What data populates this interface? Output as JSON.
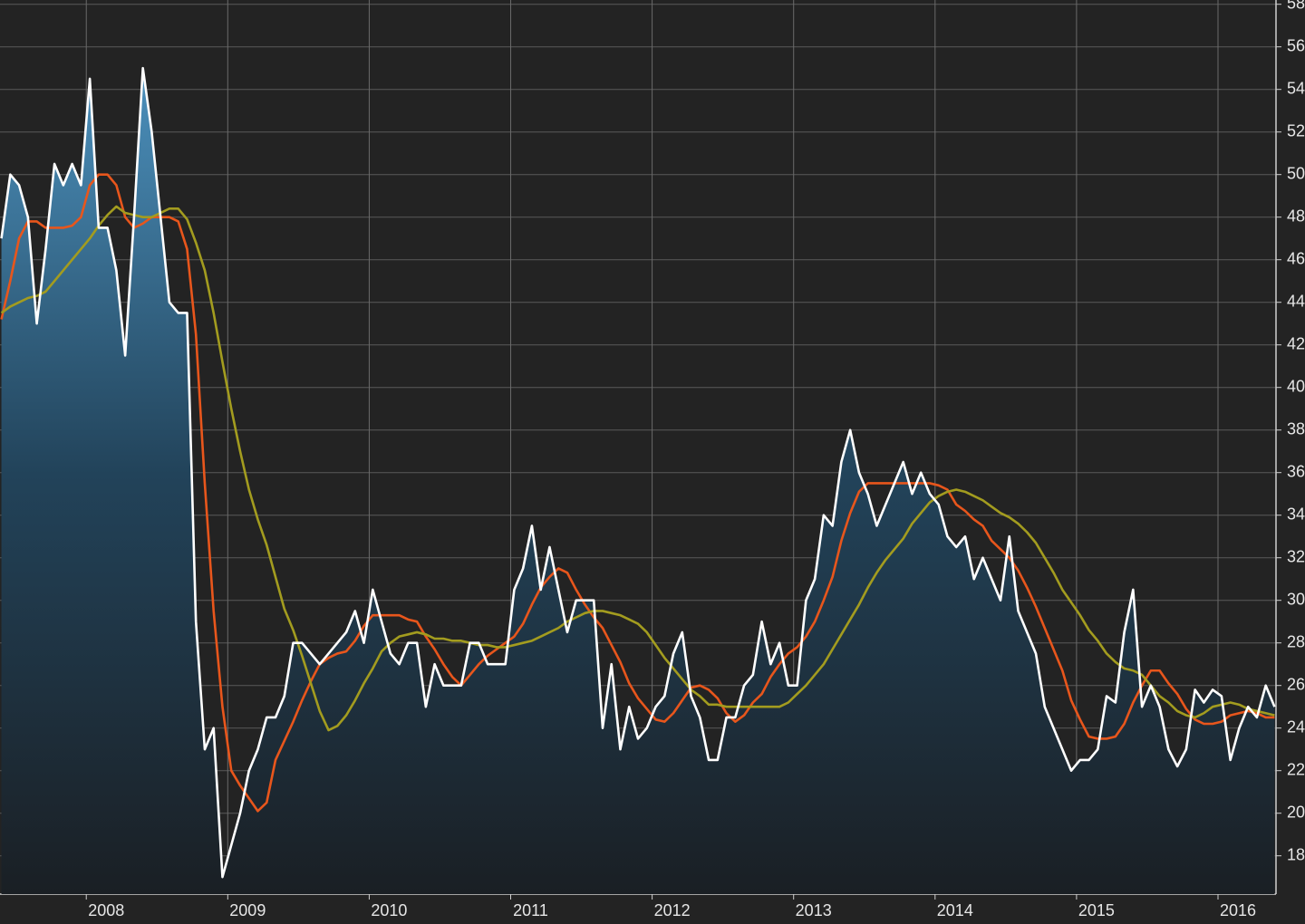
{
  "chart_data": {
    "type": "line",
    "x": [
      2007.4,
      2007.4625,
      2007.525,
      2007.5875,
      2007.65,
      2007.7125,
      2007.775,
      2007.8375,
      2007.9,
      2007.9625,
      2008.025,
      2008.0875,
      2008.15,
      2008.2125,
      2008.275,
      2008.3375,
      2008.4,
      2008.4625,
      2008.525,
      2008.5875,
      2008.65,
      2008.7125,
      2008.775,
      2008.8375,
      2008.9,
      2008.9625,
      2009.025,
      2009.0875,
      2009.15,
      2009.2125,
      2009.275,
      2009.3375,
      2009.4,
      2009.4625,
      2009.525,
      2009.5875,
      2009.65,
      2009.7125,
      2009.775,
      2009.8375,
      2009.9,
      2009.9625,
      2010.025,
      2010.0875,
      2010.15,
      2010.2125,
      2010.275,
      2010.3375,
      2010.4,
      2010.4625,
      2010.525,
      2010.5875,
      2010.65,
      2010.7125,
      2010.775,
      2010.8375,
      2010.9,
      2010.9625,
      2011.025,
      2011.0875,
      2011.15,
      2011.2125,
      2011.275,
      2011.3375,
      2011.4,
      2011.4625,
      2011.525,
      2011.5875,
      2011.65,
      2011.7125,
      2011.775,
      2011.8375,
      2011.9,
      2011.9625,
      2012.025,
      2012.0875,
      2012.15,
      2012.2125,
      2012.275,
      2012.3375,
      2012.4,
      2012.4625,
      2012.525,
      2012.5875,
      2012.65,
      2012.7125,
      2012.775,
      2012.8375,
      2012.9,
      2012.9625,
      2013.025,
      2013.0875,
      2013.15,
      2013.2125,
      2013.275,
      2013.3375,
      2013.4,
      2013.4625,
      2013.525,
      2013.5875,
      2013.65,
      2013.7125,
      2013.775,
      2013.8375,
      2013.9,
      2013.9625,
      2014.025,
      2014.0875,
      2014.15,
      2014.2125,
      2014.275,
      2014.3375,
      2014.4,
      2014.4625,
      2014.525,
      2014.5875,
      2014.65,
      2014.7125,
      2014.775,
      2014.8375,
      2014.9,
      2014.9625,
      2015.025,
      2015.0875,
      2015.15,
      2015.2125,
      2015.275,
      2015.3375,
      2015.4,
      2015.4625,
      2015.525,
      2015.5875,
      2015.65,
      2015.7125,
      2015.775,
      2015.8375,
      2015.9,
      2015.9625,
      2016.025,
      2016.0875,
      2016.15,
      2016.2125,
      2016.275,
      2016.3375,
      2016.4
    ],
    "series": [
      {
        "color": "#ffffff",
        "area": true,
        "values": [
          47,
          50,
          49.5,
          48,
          43,
          46.5,
          50.5,
          49.5,
          50.5,
          49.5,
          54.5,
          47.5,
          47.5,
          45.5,
          41.5,
          48,
          55,
          52,
          48,
          44,
          43.5,
          43.5,
          29,
          23,
          24,
          17,
          18.5,
          20,
          22,
          23,
          24.5,
          24.5,
          25.5,
          28,
          28,
          27.5,
          27,
          27.5,
          28,
          28.5,
          29.5,
          28,
          30.5,
          29,
          27.5,
          27,
          28,
          28,
          25,
          27,
          26,
          26,
          26,
          28,
          28,
          27,
          27,
          27,
          30.5,
          31.5,
          33.5,
          30.5,
          32.5,
          30.5,
          28.5,
          30,
          30,
          30,
          24,
          27,
          23,
          25,
          23.5,
          24,
          25,
          25.5,
          27.5,
          28.5,
          25.5,
          24.5,
          22.5,
          22.5,
          24.5,
          24.5,
          26,
          26.5,
          29,
          27,
          28,
          26,
          26,
          30,
          31,
          34,
          33.5,
          36.5,
          38,
          36,
          35,
          33.5,
          34.5,
          35.5,
          36.5,
          35,
          36,
          35,
          34.5,
          33,
          32.5,
          33,
          31,
          32,
          31,
          30,
          33,
          29.5,
          28.5,
          27.5,
          25,
          24,
          23,
          22,
          22.5,
          22.5,
          23,
          25.5,
          25.2,
          28.5,
          30.5,
          25,
          26,
          25,
          23,
          22.2,
          23,
          25.8,
          25.2,
          25.8,
          25.5,
          22.5,
          24,
          25,
          24.5,
          26,
          25
        ]
      },
      {
        "color": "#e8561c",
        "values": [
          43.2,
          45,
          47,
          47.8,
          47.8,
          47.5,
          47.5,
          47.5,
          47.6,
          48,
          49.5,
          50,
          50,
          49.5,
          48,
          47.5,
          47.7,
          48,
          48,
          48,
          47.8,
          46.5,
          42.5,
          35.5,
          29.5,
          25,
          22,
          21.3,
          20.7,
          20.1,
          20.5,
          22.5,
          23.4,
          24.3,
          25.3,
          26.2,
          27,
          27.3,
          27.5,
          27.6,
          28.1,
          28.8,
          29.3,
          29.3,
          29.3,
          29.3,
          29.1,
          29,
          28.3,
          27.7,
          27,
          26.4,
          26,
          26.5,
          27,
          27.4,
          27.7,
          28,
          28.3,
          28.9,
          29.8,
          30.6,
          31.1,
          31.5,
          31.3,
          30.5,
          29.8,
          29.2,
          28.7,
          27.9,
          27.1,
          26.1,
          25.4,
          24.9,
          24.4,
          24.3,
          24.7,
          25.3,
          25.9,
          26,
          25.8,
          25.4,
          24.7,
          24.3,
          24.6,
          25.2,
          25.6,
          26.4,
          27,
          27.5,
          27.8,
          28.3,
          29,
          30,
          31.1,
          32.8,
          34.1,
          35.1,
          35.5,
          35.5,
          35.5,
          35.5,
          35.5,
          35.5,
          35.5,
          35.5,
          35.4,
          35.2,
          34.5,
          34.2,
          33.8,
          33.5,
          32.8,
          32.4,
          32,
          31.4,
          30.6,
          29.7,
          28.7,
          27.7,
          26.7,
          25.3,
          24.4,
          23.6,
          23.5,
          23.5,
          23.6,
          24.2,
          25.2,
          26,
          26.7,
          26.7,
          26.1,
          25.6,
          24.9,
          24.4,
          24.2,
          24.2,
          24.3,
          24.6,
          24.7,
          24.8,
          24.7,
          24.5,
          24.5
        ]
      },
      {
        "color": "#a39c1f",
        "values": [
          43.5,
          43.8,
          44,
          44.2,
          44.3,
          44.5,
          45,
          45.5,
          46,
          46.5,
          47,
          47.6,
          48.1,
          48.5,
          48.2,
          48.1,
          48,
          48,
          48.2,
          48.4,
          48.4,
          47.9,
          46.8,
          45.5,
          43.5,
          41.2,
          39,
          37,
          35.2,
          33.8,
          32.6,
          31.1,
          29.6,
          28.6,
          27.4,
          26.1,
          24.8,
          23.9,
          24.1,
          24.6,
          25.3,
          26.1,
          26.8,
          27.6,
          28,
          28.3,
          28.4,
          28.5,
          28.4,
          28.2,
          28.2,
          28.1,
          28.1,
          28,
          27.9,
          27.9,
          27.8,
          27.8,
          27.9,
          28,
          28.1,
          28.3,
          28.5,
          28.7,
          29,
          29.2,
          29.4,
          29.5,
          29.5,
          29.4,
          29.3,
          29.1,
          28.9,
          28.5,
          27.9,
          27.3,
          26.8,
          26.3,
          25.8,
          25.5,
          25.1,
          25.1,
          25,
          25,
          25,
          25,
          25,
          25,
          25,
          25.2,
          25.6,
          26,
          26.5,
          27,
          27.7,
          28.4,
          29.1,
          29.8,
          30.6,
          31.3,
          31.9,
          32.4,
          32.9,
          33.6,
          34.1,
          34.6,
          34.9,
          35.1,
          35.2,
          35.1,
          34.9,
          34.7,
          34.4,
          34.1,
          33.9,
          33.6,
          33.2,
          32.7,
          32,
          31.3,
          30.5,
          29.9,
          29.3,
          28.6,
          28.1,
          27.5,
          27.1,
          26.8,
          26.7,
          26.5,
          26,
          25.5,
          25.2,
          24.8,
          24.6,
          24.5,
          24.7,
          25,
          25.1,
          25.2,
          25.1,
          24.9,
          24.8,
          24.7,
          24.6
        ]
      }
    ],
    "xlim": [
      2007.39,
      2016.41
    ],
    "xticks": [
      2008,
      2009,
      2010,
      2011,
      2012,
      2013,
      2014,
      2015,
      2016
    ],
    "ylim": [
      16.2,
      58.2
    ],
    "yticks": [
      18,
      20,
      22,
      24,
      26,
      28,
      30,
      32,
      34,
      36,
      38,
      40,
      42,
      44,
      46,
      48,
      50,
      52,
      54,
      56,
      58
    ],
    "grid": true
  }
}
